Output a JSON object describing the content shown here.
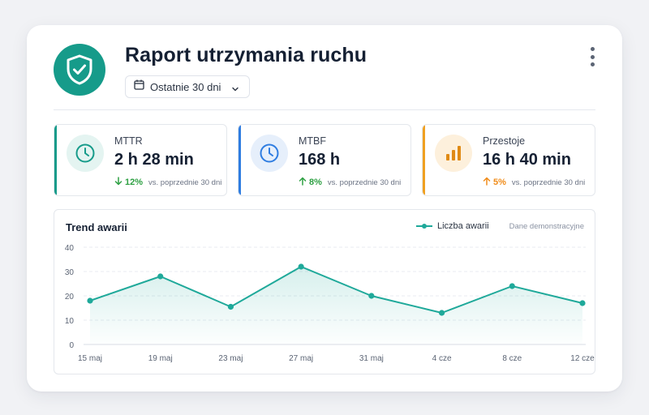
{
  "header": {
    "title": "Raport utrzymania ruchu",
    "range_label": "Ostatnie 30 dni"
  },
  "kpis": [
    {
      "label": "MTTR",
      "value": "2 h 28 min",
      "delta": "12%",
      "direction": "down",
      "compare": "vs. poprzednie 30 dni",
      "accent": "#169b8a",
      "icon": "clock-icon"
    },
    {
      "label": "MTBF",
      "value": "168 h",
      "delta": "8%",
      "direction": "up",
      "compare": "vs. poprzednie 30 dni",
      "accent": "#2f7de1",
      "icon": "clock-icon"
    },
    {
      "label": "Przestoje",
      "value": "16 h 40 min",
      "delta": "5%",
      "direction": "up",
      "compare": "vs. poprzednie 30 dni",
      "accent": "#f0a020",
      "icon": "bar-chart-icon"
    }
  ],
  "chart": {
    "title": "Trend awarii",
    "legend_label": "Liczba awarii",
    "note": "Dane demonstracyjne"
  },
  "colors": {
    "brand": "#169b8a",
    "mttr_accent": "#169b8a",
    "mtbf_accent": "#2f7de1",
    "downtime_accent": "#f0a020",
    "positive_delta": "#2ea043",
    "warning_delta": "#f08c1a",
    "series": "#1fa99a"
  },
  "chart_data": {
    "type": "line",
    "title": "Trend awarii",
    "x": [
      "15 maj",
      "19 maj",
      "23 maj",
      "27 maj",
      "31 maj",
      "4 cze",
      "8 cze",
      "12 cze"
    ],
    "series": [
      {
        "name": "Liczba awarii",
        "values": [
          18,
          28,
          15.5,
          32,
          20,
          13,
          24,
          17
        ]
      }
    ],
    "yticks": [
      0,
      10,
      20,
      30,
      40
    ],
    "ylim": [
      0,
      40
    ],
    "grid": true,
    "legend": "top-right"
  }
}
